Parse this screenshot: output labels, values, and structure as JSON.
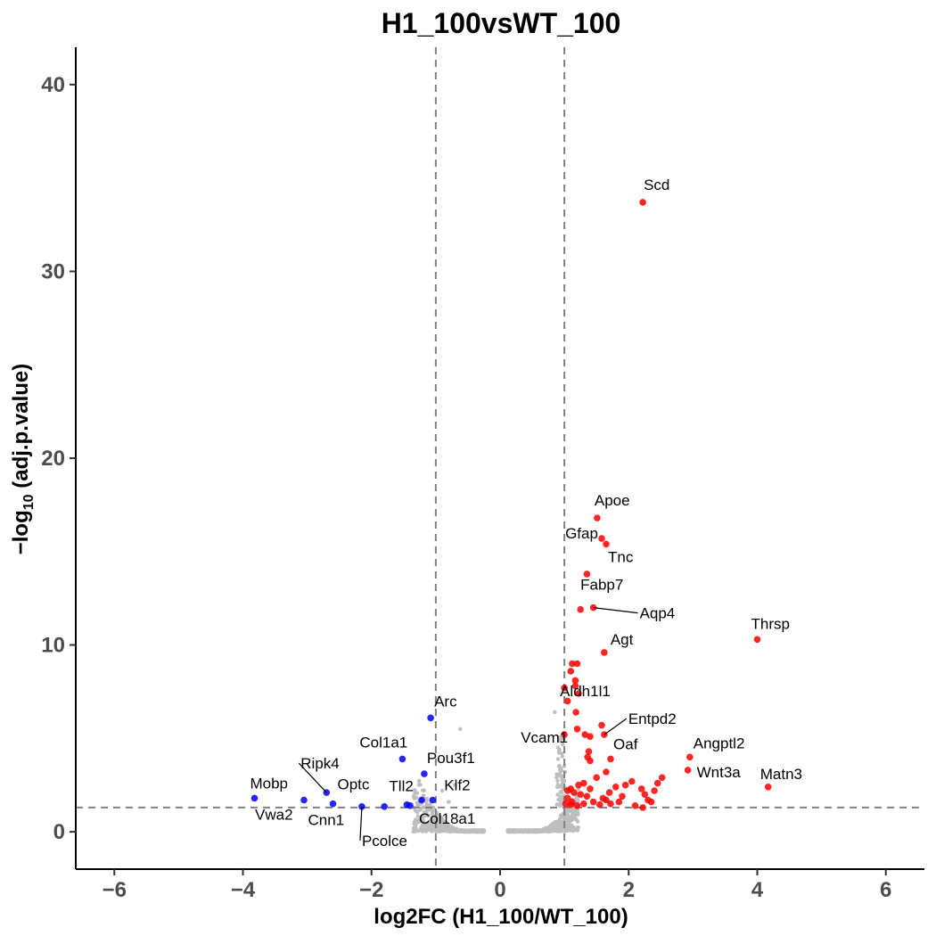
{
  "chart_data": {
    "type": "scatter",
    "title": "H1_100vsWT_100",
    "xlabel": "log2FC (H1_100/WT_100)",
    "ylabel": "−log10 (adj.p.value)",
    "xlim": [
      -6.6,
      6.6
    ],
    "ylim": [
      -2,
      42
    ],
    "xticks": [
      -6,
      -4,
      -2,
      0,
      2,
      4,
      6
    ],
    "xtick_labels": [
      "−6",
      "−4",
      "−2",
      "0",
      "2",
      "4",
      "6"
    ],
    "yticks": [
      0,
      10,
      20,
      30,
      40
    ],
    "ytick_labels": [
      "0",
      "10",
      "20",
      "30",
      "40"
    ],
    "grid": false,
    "legend": "none",
    "thresholds": {
      "log2fc": [
        -1,
        1
      ],
      "neg_log10_padj": 1.3
    },
    "colors": {
      "up": "#ff0000",
      "down": "#0000ff",
      "ns": "#bebebe",
      "threshold_line": "#808080"
    },
    "series": [
      {
        "color": "#ff0000",
        "points": [
          {
            "x": 2.22,
            "y": 33.7,
            "label": "Scd"
          },
          {
            "x": 1.51,
            "y": 16.8,
            "label": "Apoe"
          },
          {
            "x": 1.58,
            "y": 15.7,
            "label": "Gfap"
          },
          {
            "x": 1.65,
            "y": 15.4,
            "label": "Tnc"
          },
          {
            "x": 1.35,
            "y": 13.8
          },
          {
            "x": 1.25,
            "y": 11.9,
            "label": "Fabp7"
          },
          {
            "x": 1.45,
            "y": 12.0,
            "label": "Aqp4"
          },
          {
            "x": 4.0,
            "y": 10.3,
            "label": "Thrsp"
          },
          {
            "x": 1.62,
            "y": 9.6,
            "label": "Agt"
          },
          {
            "x": 1.12,
            "y": 9.0
          },
          {
            "x": 1.2,
            "y": 9.0
          },
          {
            "x": 1.1,
            "y": 8.6
          },
          {
            "x": 1.17,
            "y": 8.1
          },
          {
            "x": 1.17,
            "y": 7.8
          },
          {
            "x": 1.0,
            "y": 7.7
          },
          {
            "x": 1.22,
            "y": 7.4
          },
          {
            "x": 1.05,
            "y": 7.0
          },
          {
            "x": 1.18,
            "y": 6.4,
            "label": "Aldh1l1"
          },
          {
            "x": 1.62,
            "y": 5.2,
            "label": "Entpd2"
          },
          {
            "x": 1.0,
            "y": 5.2,
            "label": "Vcam1"
          },
          {
            "x": 1.58,
            "y": 5.7
          },
          {
            "x": 1.2,
            "y": 5.5
          },
          {
            "x": 1.32,
            "y": 5.2
          },
          {
            "x": 1.4,
            "y": 5.1
          },
          {
            "x": 1.72,
            "y": 3.9,
            "label": "Oaf"
          },
          {
            "x": 2.95,
            "y": 4.0,
            "label": "Angptl2"
          },
          {
            "x": 2.92,
            "y": 3.3,
            "label": "Wnt3a"
          },
          {
            "x": 4.17,
            "y": 2.4,
            "label": "Matn3"
          },
          {
            "x": 1.38,
            "y": 4.3
          },
          {
            "x": 1.36,
            "y": 4.0
          },
          {
            "x": 1.4,
            "y": 3.8
          },
          {
            "x": 1.65,
            "y": 3.2
          },
          {
            "x": 1.5,
            "y": 2.9
          },
          {
            "x": 1.3,
            "y": 2.6
          },
          {
            "x": 1.22,
            "y": 2.5
          },
          {
            "x": 1.1,
            "y": 2.3
          },
          {
            "x": 1.05,
            "y": 2.2
          },
          {
            "x": 1.15,
            "y": 2.1
          },
          {
            "x": 1.25,
            "y": 2.0
          },
          {
            "x": 1.35,
            "y": 1.9
          },
          {
            "x": 1.05,
            "y": 1.8
          },
          {
            "x": 1.12,
            "y": 1.6
          },
          {
            "x": 1.02,
            "y": 1.5
          },
          {
            "x": 1.1,
            "y": 1.45
          },
          {
            "x": 1.2,
            "y": 1.4
          },
          {
            "x": 1.3,
            "y": 1.5
          },
          {
            "x": 1.45,
            "y": 1.6
          },
          {
            "x": 1.55,
            "y": 1.45
          },
          {
            "x": 1.65,
            "y": 1.7
          },
          {
            "x": 1.72,
            "y": 1.5
          },
          {
            "x": 1.85,
            "y": 1.6
          },
          {
            "x": 1.9,
            "y": 1.9
          },
          {
            "x": 1.8,
            "y": 2.4
          },
          {
            "x": 1.95,
            "y": 2.5
          },
          {
            "x": 2.05,
            "y": 2.7
          },
          {
            "x": 2.25,
            "y": 2.0
          },
          {
            "x": 2.3,
            "y": 1.7
          },
          {
            "x": 2.4,
            "y": 2.2
          },
          {
            "x": 2.45,
            "y": 2.6
          },
          {
            "x": 2.52,
            "y": 2.9
          },
          {
            "x": 2.35,
            "y": 1.6
          },
          {
            "x": 2.2,
            "y": 2.3
          },
          {
            "x": 2.1,
            "y": 1.4
          },
          {
            "x": 1.7,
            "y": 2.1
          },
          {
            "x": 1.6,
            "y": 1.8
          },
          {
            "x": 1.4,
            "y": 2.3
          },
          {
            "x": 2.22,
            "y": 1.3
          }
        ]
      },
      {
        "color": "#0000ff",
        "points": [
          {
            "x": -1.08,
            "y": 6.1,
            "label": "Arc"
          },
          {
            "x": -1.52,
            "y": 3.9,
            "label": "Col1a1"
          },
          {
            "x": -1.18,
            "y": 3.1,
            "label": "Pou3f1"
          },
          {
            "x": -2.7,
            "y": 2.1,
            "label": "Ripk4"
          },
          {
            "x": -3.82,
            "y": 1.8,
            "label": "Mobp"
          },
          {
            "x": -3.05,
            "y": 1.7,
            "label": "Vwa2"
          },
          {
            "x": -2.6,
            "y": 1.5,
            "label": "Cnn1"
          },
          {
            "x": -2.15,
            "y": 1.35,
            "label": "Pcolce"
          },
          {
            "x": -1.8,
            "y": 1.35
          },
          {
            "x": -1.45,
            "y": 1.45,
            "label": "Tll2"
          },
          {
            "x": -1.22,
            "y": 1.7
          },
          {
            "x": -1.05,
            "y": 1.7,
            "label": "Klf2"
          },
          {
            "x": -1.4,
            "y": 1.4,
            "label": "Col18a1"
          }
        ]
      }
    ]
  },
  "label_positions": [
    {
      "text": "Scd",
      "dx": 1,
      "dy": -14,
      "anchor": "start"
    },
    {
      "text": "Apoe",
      "dx": -3,
      "dy": -14,
      "anchor": "start"
    },
    {
      "text": "Gfap",
      "dx": -4,
      "dy": 0,
      "anchor": "end"
    },
    {
      "text": "Tnc",
      "dx": 2,
      "dy": 20,
      "anchor": "start"
    },
    {
      "text": "Fabp7",
      "dx": 0,
      "dy": -22,
      "anchor": "start"
    },
    {
      "text": "Aqp4",
      "dx": 52,
      "dy": 12,
      "anchor": "start",
      "line": true
    },
    {
      "text": "Thrsp",
      "dx": -7,
      "dy": -12,
      "anchor": "start"
    },
    {
      "text": "Agt",
      "dx": 7,
      "dy": -9,
      "anchor": "start"
    },
    {
      "text": "Aldh1l1",
      "dx": -18,
      "dy": -18,
      "anchor": "start"
    },
    {
      "text": "Entpd2",
      "dx": 27,
      "dy": -12,
      "anchor": "start",
      "line": true
    },
    {
      "text": "Vcam1",
      "dx": 4,
      "dy": 9,
      "anchor": "end"
    },
    {
      "text": "Oaf",
      "dx": 3,
      "dy": -11,
      "anchor": "start"
    },
    {
      "text": "Angptl2",
      "dx": 4,
      "dy": -10,
      "anchor": "start"
    },
    {
      "text": "Wnt3a",
      "dx": 10,
      "dy": 8,
      "anchor": "start"
    },
    {
      "text": "Matn3",
      "dx": -9,
      "dy": -9,
      "anchor": "start"
    },
    {
      "text": "Arc",
      "dx": 4,
      "dy": -13,
      "anchor": "start"
    },
    {
      "text": "Col1a1",
      "dx": -48,
      "dy": -13,
      "anchor": "start"
    },
    {
      "text": "Pou3f1",
      "dx": 3,
      "dy": -12,
      "anchor": "start"
    },
    {
      "text": "Ripk4",
      "dx": -29,
      "dy": -27,
      "anchor": "start",
      "line": true
    },
    {
      "text": "Mobp",
      "dx": -5,
      "dy": -11,
      "anchor": "start"
    },
    {
      "text": "Vwa2",
      "dx": -55,
      "dy": 22,
      "anchor": "start"
    },
    {
      "text": "Cnn1",
      "dx": -28,
      "dy": 24,
      "anchor": "start"
    },
    {
      "text": "Pcolce",
      "dx": 0,
      "dy": 44,
      "anchor": "start",
      "line": true
    },
    {
      "text": "Tll2",
      "dx": -20,
      "dy": -15,
      "anchor": "start"
    },
    {
      "text": "Klf2",
      "dx": 13,
      "dy": -11,
      "anchor": "start"
    },
    {
      "text": "Col18a1",
      "dx": 10,
      "dy": 20,
      "anchor": "start"
    },
    {
      "text": "Optc",
      "dx": 5,
      "dy": -16,
      "anchor": "start"
    }
  ]
}
